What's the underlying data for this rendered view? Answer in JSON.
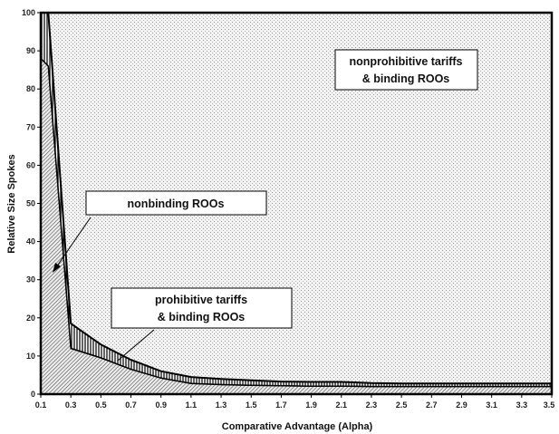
{
  "chart_data": {
    "type": "area",
    "xlabel": "Comparative Advantage (Alpha)",
    "ylabel": "Relative Size Spokes",
    "xlim": [
      0.1,
      3.5
    ],
    "ylim": [
      0,
      100
    ],
    "x_ticks": [
      "0.1",
      "0.3",
      "0.5",
      "0.7",
      "0.9",
      "1.1",
      "1.3",
      "1.5",
      "1.7",
      "1.9",
      "2.1",
      "2.3",
      "2.5",
      "2.7",
      "2.9",
      "3.1",
      "3.3",
      "3.5"
    ],
    "y_ticks": [
      "0",
      "10",
      "20",
      "30",
      "40",
      "50",
      "60",
      "70",
      "80",
      "90",
      "100"
    ],
    "grid": false,
    "series": [
      {
        "role": "upper boundary",
        "x": [
          0.1,
          0.15,
          0.3,
          0.5,
          0.7,
          0.9,
          1.1,
          1.3,
          1.5,
          1.7,
          1.9,
          2.1,
          2.3,
          2.5,
          2.7,
          2.9,
          3.1,
          3.3,
          3.5
        ],
        "y": [
          100,
          100,
          18.5,
          13,
          9,
          6,
          4.5,
          4,
          3.6,
          3.3,
          3.2,
          3.2,
          2.9,
          2.8,
          2.8,
          2.8,
          2.8,
          2.8,
          2.8
        ]
      },
      {
        "role": "lower boundary",
        "x": [
          0.1,
          0.15,
          0.3,
          0.5,
          0.7,
          0.9,
          1.1,
          1.3,
          1.5,
          1.7,
          1.9,
          2.1,
          2.3,
          2.5,
          2.7,
          2.9,
          3.1,
          3.3,
          3.5
        ],
        "y": [
          88,
          86,
          12,
          9.5,
          6.5,
          4.2,
          2.8,
          2.5,
          2.3,
          2.2,
          2.1,
          2.1,
          2,
          2,
          2,
          2,
          2,
          2,
          2
        ]
      }
    ],
    "regions": [
      {
        "label": "nonprohibitive tariffs & binding ROOs",
        "lines": [
          "nonprohibitive tariffs",
          "& binding ROOs"
        ]
      },
      {
        "label": "nonbinding ROOs",
        "lines": [
          "nonbinding ROOs"
        ]
      },
      {
        "label": "prohibitive tariffs & binding ROOs",
        "lines": [
          "prohibitive tariffs",
          "& binding ROOs"
        ]
      }
    ]
  }
}
